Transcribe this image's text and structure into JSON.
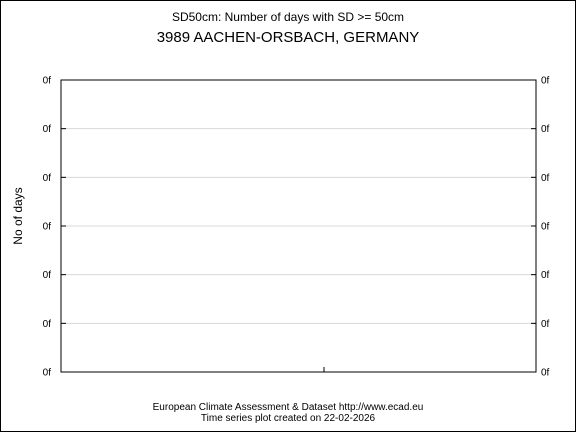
{
  "chart_data": {
    "type": "line",
    "title": "SD50cm: Number of days with SD >= 50cm",
    "subtitle": "3989 AACHEN-ORSBACH, GERMANY",
    "ylabel": "No of days",
    "xlabel": "",
    "y_ticks": [
      "0f",
      "0f",
      "0f",
      "0f",
      "0f",
      "0f",
      "0f"
    ],
    "grid": true,
    "series": []
  },
  "footer": {
    "line1": "European Climate Assessment & Dataset  http://www.ecad.eu",
    "line2": "Time series plot created on 22-02-2026"
  },
  "colors": {
    "grid": "#d8d8d8",
    "axis": "#000000"
  }
}
